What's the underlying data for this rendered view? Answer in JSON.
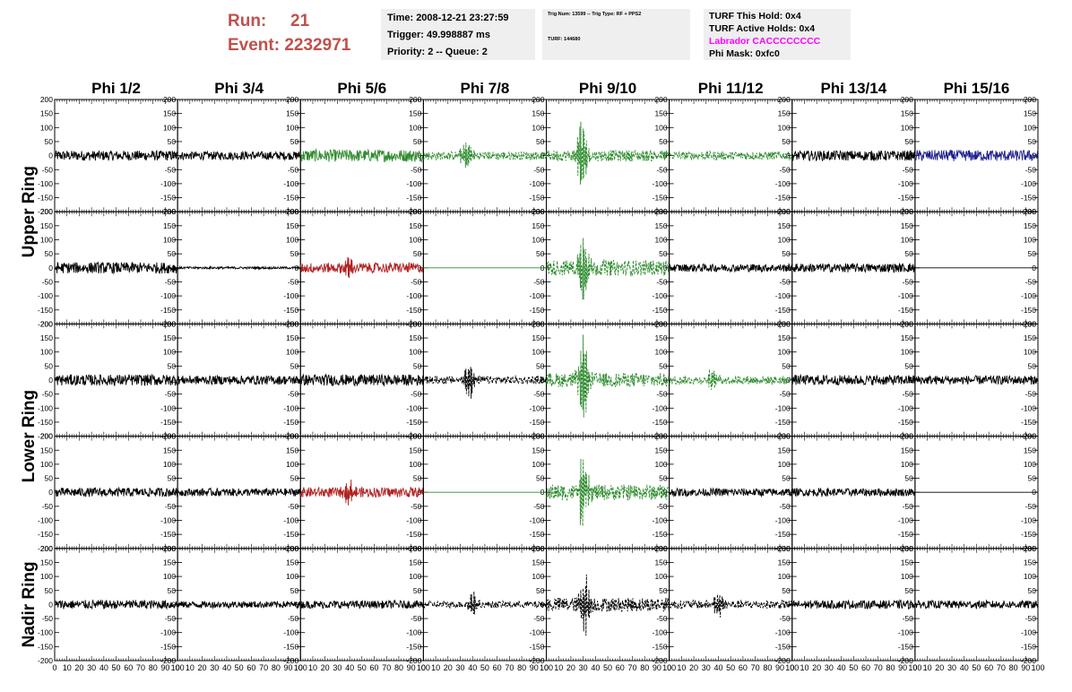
{
  "header": {
    "run_label": "Run:",
    "run_value": "21",
    "event_label": "Event:",
    "event_value": "2232971",
    "time": "Time: 2008-12-21 23:27:59",
    "trigger": "Trigger: 49.998887 ms",
    "priority": "Priority: 2 -- Queue: 2",
    "trig_num": "Trig Num: 13599 -- Trig Type: RF + PPS2",
    "turf": "TURF: 144680",
    "turf_hold": "TURF This Hold: 0x4",
    "turf_active": "TURF Active Holds: 0x4",
    "labrador": "Labrador CACCCCCCCC",
    "phi_mask": "Phi Mask: 0xfc0"
  },
  "colors": {
    "run_text": "#c0504d",
    "labrador_text": "#ff00ff",
    "panel_bg": "#efefef",
    "black_trace": "#000000",
    "green_trace": "#2e8b2e",
    "red_trace": "#b22222",
    "blue_trace": "#1f1f8f"
  },
  "chart_data": {
    "type": "line",
    "columns": [
      "Phi 1/2",
      "Phi 3/4",
      "Phi 5/6",
      "Phi 7/8",
      "Phi 9/10",
      "Phi 11/12",
      "Phi 13/14",
      "Phi 15/16"
    ],
    "ring_labels": [
      "Upper Ring",
      "Lower Ring",
      "Nadir Ring"
    ],
    "xlim": [
      0,
      100
    ],
    "ylim": [
      -200,
      200
    ],
    "x_ticks": [
      0,
      10,
      20,
      30,
      40,
      50,
      60,
      70,
      80,
      90,
      100
    ],
    "x_tick_labels": [
      "0",
      "10",
      "20",
      "30",
      "40",
      "50",
      "60",
      "70",
      "80",
      "90",
      "100"
    ],
    "y_ticks": [
      -200,
      -150,
      -100,
      -50,
      0,
      50,
      100,
      150,
      200
    ],
    "y_tick_labels": [
      "-200",
      "-150",
      "-100",
      "-50",
      "0",
      "50",
      "100",
      "150",
      "200"
    ],
    "panels": [
      [
        {
          "color": "black",
          "style": "solid",
          "amp": 18,
          "flat": false
        },
        {
          "color": "black",
          "style": "solid",
          "amp": 15,
          "flat": false
        },
        {
          "color": "green",
          "style": "solid",
          "amp": 22,
          "flat": false
        },
        {
          "color": "green",
          "style": "dashed",
          "amp": 15,
          "burst_center": 35,
          "burst_amp": 65,
          "flat": false
        },
        {
          "color": "green",
          "style": "dashed",
          "amp": 20,
          "burst_center": 29,
          "burst_amp": 150,
          "flat": false
        },
        {
          "color": "green",
          "style": "dashed",
          "amp": 15,
          "flat": false
        },
        {
          "color": "black",
          "style": "solid",
          "amp": 18,
          "flat": false
        },
        {
          "color": "blue",
          "style": "solid",
          "amp": 20,
          "flat": false
        }
      ],
      [
        {
          "color": "black",
          "style": "solid",
          "amp": 20,
          "flat": false
        },
        {
          "color": "black",
          "style": "solid",
          "amp": 4,
          "flat": false
        },
        {
          "color": "red",
          "style": "solid",
          "amp": 18,
          "burst_center": 40,
          "burst_amp": 40,
          "flat": false
        },
        {
          "color": "green",
          "style": "solid",
          "amp": 0,
          "flat": true
        },
        {
          "color": "green",
          "style": "dashed",
          "amp": 28,
          "burst_center": 30,
          "burst_amp": 140,
          "flat": false
        },
        {
          "color": "black",
          "style": "solid",
          "amp": 14,
          "flat": false
        },
        {
          "color": "black",
          "style": "solid",
          "amp": 16,
          "flat": false
        },
        {
          "color": "black",
          "style": "solid",
          "amp": 0,
          "flat": true
        }
      ],
      [
        {
          "color": "black",
          "style": "solid",
          "amp": 20,
          "flat": false
        },
        {
          "color": "black",
          "style": "solid",
          "amp": 16,
          "flat": false
        },
        {
          "color": "black",
          "style": "solid",
          "amp": 20,
          "flat": false
        },
        {
          "color": "black",
          "style": "dashed",
          "amp": 14,
          "burst_center": 37,
          "burst_amp": 85,
          "flat": false
        },
        {
          "color": "green",
          "style": "dashed",
          "amp": 25,
          "burst_center": 30,
          "burst_amp": 160,
          "flat": false
        },
        {
          "color": "green",
          "style": "dashed",
          "amp": 15,
          "burst_center": 35,
          "burst_amp": 40,
          "flat": false
        },
        {
          "color": "black",
          "style": "solid",
          "amp": 18,
          "flat": false
        },
        {
          "color": "black",
          "style": "solid",
          "amp": 16,
          "flat": false
        }
      ],
      [
        {
          "color": "black",
          "style": "solid",
          "amp": 16,
          "flat": false
        },
        {
          "color": "black",
          "style": "solid",
          "amp": 14,
          "flat": false
        },
        {
          "color": "red",
          "style": "solid",
          "amp": 18,
          "burst_center": 40,
          "burst_amp": 45,
          "flat": false
        },
        {
          "color": "green",
          "style": "solid",
          "amp": 0,
          "flat": true
        },
        {
          "color": "green",
          "style": "dashed",
          "amp": 28,
          "burst_center": 30,
          "burst_amp": 140,
          "flat": false
        },
        {
          "color": "black",
          "style": "solid",
          "amp": 14,
          "flat": false
        },
        {
          "color": "black",
          "style": "solid",
          "amp": 14,
          "flat": false
        },
        {
          "color": "black",
          "style": "solid",
          "amp": 0,
          "flat": true
        }
      ],
      [
        {
          "color": "black",
          "style": "solid",
          "amp": 16,
          "flat": false
        },
        {
          "color": "black",
          "style": "solid",
          "amp": 12,
          "flat": false
        },
        {
          "color": "black",
          "style": "solid",
          "amp": 14,
          "flat": false
        },
        {
          "color": "black",
          "style": "dashed",
          "amp": 12,
          "burst_center": 40,
          "burst_amp": 50,
          "flat": false
        },
        {
          "color": "black",
          "style": "dashed",
          "amp": 25,
          "burst_center": 31,
          "burst_amp": 125,
          "flat": false
        },
        {
          "color": "black",
          "style": "dashed",
          "amp": 15,
          "burst_center": 40,
          "burst_amp": 55,
          "flat": false
        },
        {
          "color": "black",
          "style": "solid",
          "amp": 15,
          "flat": false
        },
        {
          "color": "black",
          "style": "solid",
          "amp": 14,
          "flat": false
        }
      ]
    ]
  }
}
